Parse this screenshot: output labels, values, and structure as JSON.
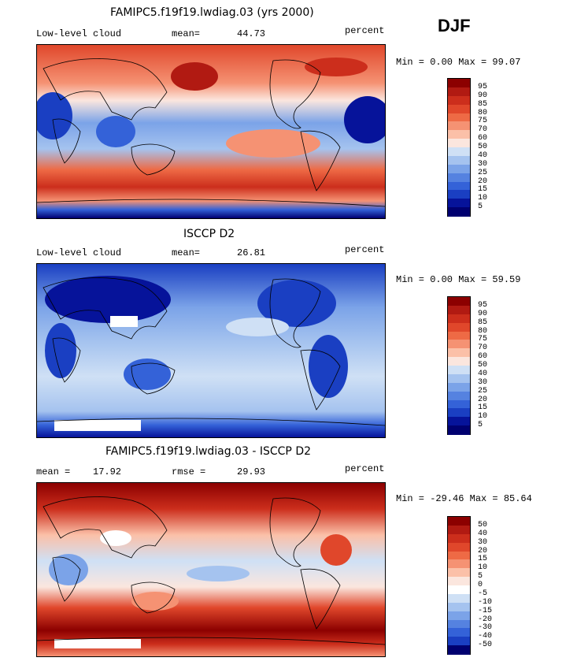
{
  "season": "DJF",
  "chart_data": [
    {
      "type": "heatmap",
      "title": "FAMIPC5.f19f19.lwdiag.03 (yrs 2000)",
      "left_label": "Low-level cloud",
      "stat_label": "mean=",
      "stat_value": "44.73",
      "units": "percent",
      "range_text": "Min =   0.00 Max =  99.07",
      "min": 0.0,
      "max": 99.07,
      "colorbar": {
        "levels": [
          "95",
          "90",
          "85",
          "80",
          "75",
          "70",
          "60",
          "50",
          "40",
          "30",
          "25",
          "20",
          "15",
          "10",
          "5"
        ],
        "colors": [
          "#8c0000",
          "#b11a12",
          "#cc2e1c",
          "#e0472b",
          "#ee6a45",
          "#f59273",
          "#fbc0a8",
          "#fbe6de",
          "#cfe0f5",
          "#a5c3ef",
          "#7ba3e8",
          "#5582e0",
          "#3462d8",
          "#1a3fc2",
          "#06139a",
          "#000070"
        ]
      },
      "field_mean": 44.73
    },
    {
      "type": "heatmap",
      "title": "ISCCP D2",
      "left_label": "Low-level cloud",
      "stat_label": "mean=",
      "stat_value": "26.81",
      "units": "percent",
      "range_text": "Min =   0.00 Max =  59.59",
      "min": 0.0,
      "max": 59.59,
      "colorbar": {
        "levels": [
          "95",
          "90",
          "85",
          "80",
          "75",
          "70",
          "60",
          "50",
          "40",
          "30",
          "25",
          "20",
          "15",
          "10",
          "5"
        ],
        "colors": [
          "#8c0000",
          "#b11a12",
          "#cc2e1c",
          "#e0472b",
          "#ee6a45",
          "#f59273",
          "#fbc0a8",
          "#fbe6de",
          "#cfe0f5",
          "#a5c3ef",
          "#7ba3e8",
          "#5582e0",
          "#3462d8",
          "#1a3fc2",
          "#06139a",
          "#000070"
        ]
      },
      "field_mean": 26.81
    },
    {
      "type": "heatmap",
      "title": "FAMIPC5.f19f19.lwdiag.03 - ISCCP D2",
      "left_label": "mean =",
      "left_value": "17.92",
      "stat_label": "rmse =",
      "stat_value": "29.93",
      "units": "percent",
      "range_text": "Min = -29.46 Max =  85.64",
      "min": -29.46,
      "max": 85.64,
      "colorbar": {
        "levels": [
          "50",
          "40",
          "30",
          "20",
          "15",
          "10",
          "5",
          "0",
          "-5",
          "-10",
          "-15",
          "-20",
          "-30",
          "-40",
          "-50"
        ],
        "colors": [
          "#8c0000",
          "#b11a12",
          "#cc2e1c",
          "#e0472b",
          "#ee6a45",
          "#f59273",
          "#fbc0a8",
          "#fbe6de",
          "#ffffff",
          "#cfe0f5",
          "#a5c3ef",
          "#7ba3e8",
          "#5582e0",
          "#3462d8",
          "#1a3fc2",
          "#000070"
        ]
      },
      "field_mean": 17.92
    }
  ]
}
